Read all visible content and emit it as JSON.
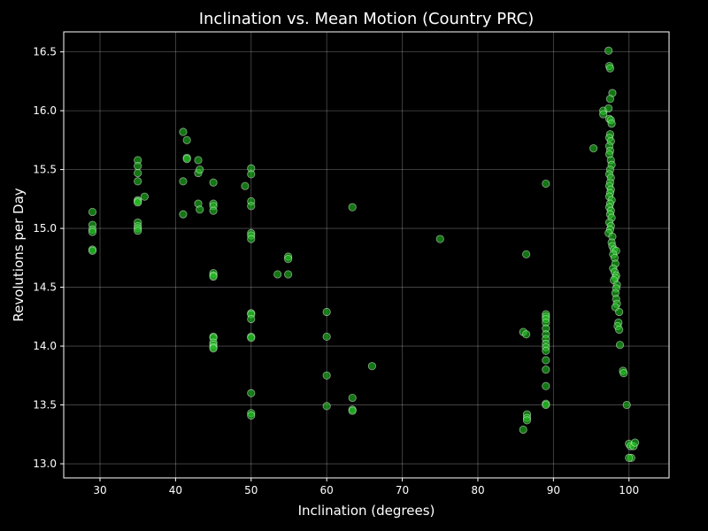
{
  "chart_data": {
    "type": "scatter",
    "title": "Inclination vs. Mean Motion (Country PRC)",
    "xlabel": "Inclination (degrees)",
    "ylabel": "Revolutions per Day",
    "xlim": [
      25.2,
      105.3
    ],
    "ylim": [
      12.88,
      16.67
    ],
    "xticks": [
      30,
      40,
      50,
      60,
      70,
      80,
      90,
      100
    ],
    "yticks": [
      13.0,
      13.5,
      14.0,
      14.5,
      15.0,
      15.5,
      16.0,
      16.5
    ],
    "ytick_labels": [
      "13.0",
      "13.5",
      "14.0",
      "14.5",
      "15.0",
      "15.5",
      "16.0",
      "16.5"
    ],
    "grid": true,
    "colors": {
      "background": "#000000",
      "marker_fill": "#22c322",
      "marker_edge": "#e8ffe8",
      "text": "#ffffff"
    },
    "points": [
      [
        29.0,
        15.14
      ],
      [
        29.0,
        15.03
      ],
      [
        29.0,
        14.99
      ],
      [
        29.0,
        14.97
      ],
      [
        29.0,
        14.82
      ],
      [
        29.0,
        14.81
      ],
      [
        35.0,
        15.58
      ],
      [
        35.0,
        15.53
      ],
      [
        35.0,
        15.47
      ],
      [
        35.0,
        15.4
      ],
      [
        35.0,
        15.24
      ],
      [
        35.0,
        15.23
      ],
      [
        35.0,
        15.22
      ],
      [
        35.0,
        15.05
      ],
      [
        35.0,
        15.02
      ],
      [
        35.0,
        15.0
      ],
      [
        35.0,
        14.98
      ],
      [
        35.9,
        15.27
      ],
      [
        41.0,
        15.82
      ],
      [
        41.5,
        15.75
      ],
      [
        41.5,
        15.6
      ],
      [
        41.5,
        15.59
      ],
      [
        41.0,
        15.4
      ],
      [
        41.0,
        15.12
      ],
      [
        43.0,
        15.58
      ],
      [
        43.0,
        15.47
      ],
      [
        43.2,
        15.5
      ],
      [
        43.0,
        15.21
      ],
      [
        43.2,
        15.16
      ],
      [
        45.0,
        15.39
      ],
      [
        45.0,
        15.21
      ],
      [
        45.0,
        15.19
      ],
      [
        45.0,
        15.15
      ],
      [
        45.0,
        14.62
      ],
      [
        45.0,
        14.6
      ],
      [
        45.0,
        14.59
      ],
      [
        45.0,
        14.08
      ],
      [
        45.0,
        14.07
      ],
      [
        45.0,
        14.03
      ],
      [
        45.0,
        14.01
      ],
      [
        45.0,
        13.99
      ],
      [
        45.0,
        13.98
      ],
      [
        49.2,
        15.36
      ],
      [
        50.0,
        15.51
      ],
      [
        50.0,
        15.46
      ],
      [
        50.0,
        15.23
      ],
      [
        50.0,
        15.19
      ],
      [
        50.0,
        14.96
      ],
      [
        50.0,
        14.94
      ],
      [
        50.0,
        14.91
      ],
      [
        50.0,
        14.28
      ],
      [
        50.0,
        14.27
      ],
      [
        50.0,
        14.23
      ],
      [
        50.0,
        14.08
      ],
      [
        50.0,
        14.07
      ],
      [
        50.0,
        13.6
      ],
      [
        50.0,
        13.43
      ],
      [
        50.0,
        13.41
      ],
      [
        53.5,
        14.61
      ],
      [
        54.9,
        14.76
      ],
      [
        54.9,
        14.74
      ],
      [
        54.9,
        14.61
      ],
      [
        60.0,
        14.29
      ],
      [
        60.0,
        14.08
      ],
      [
        60.0,
        13.75
      ],
      [
        60.0,
        13.49
      ],
      [
        63.4,
        15.18
      ],
      [
        63.4,
        13.56
      ],
      [
        63.4,
        13.46
      ],
      [
        63.4,
        13.45
      ],
      [
        66.0,
        13.83
      ],
      [
        75.0,
        14.91
      ],
      [
        86.0,
        14.12
      ],
      [
        86.0,
        13.29
      ],
      [
        86.4,
        14.78
      ],
      [
        86.4,
        14.1
      ],
      [
        86.5,
        13.42
      ],
      [
        86.5,
        13.39
      ],
      [
        86.5,
        13.37
      ],
      [
        89.0,
        15.38
      ],
      [
        89.0,
        14.27
      ],
      [
        89.0,
        14.25
      ],
      [
        89.0,
        14.23
      ],
      [
        89.0,
        14.2
      ],
      [
        89.0,
        14.15
      ],
      [
        89.0,
        14.1
      ],
      [
        89.0,
        14.06
      ],
      [
        89.0,
        14.02
      ],
      [
        89.0,
        13.99
      ],
      [
        89.0,
        13.96
      ],
      [
        89.0,
        13.88
      ],
      [
        89.0,
        13.8
      ],
      [
        89.0,
        13.66
      ],
      [
        89.0,
        13.51
      ],
      [
        89.0,
        13.5
      ],
      [
        95.3,
        15.68
      ],
      [
        96.6,
        16.0
      ],
      [
        96.6,
        15.97
      ],
      [
        97.3,
        16.51
      ],
      [
        97.4,
        16.38
      ],
      [
        97.5,
        16.36
      ],
      [
        97.8,
        16.15
      ],
      [
        97.5,
        16.1
      ],
      [
        97.3,
        16.02
      ],
      [
        97.4,
        15.93
      ],
      [
        97.6,
        15.92
      ],
      [
        97.7,
        15.89
      ],
      [
        97.5,
        15.8
      ],
      [
        97.4,
        15.77
      ],
      [
        97.6,
        15.74
      ],
      [
        97.4,
        15.7
      ],
      [
        97.5,
        15.66
      ],
      [
        97.4,
        15.63
      ],
      [
        97.6,
        15.58
      ],
      [
        97.7,
        15.54
      ],
      [
        97.5,
        15.5
      ],
      [
        97.4,
        15.46
      ],
      [
        97.6,
        15.43
      ],
      [
        97.5,
        15.39
      ],
      [
        97.4,
        15.36
      ],
      [
        97.6,
        15.33
      ],
      [
        97.5,
        15.3
      ],
      [
        97.4,
        15.27
      ],
      [
        97.7,
        15.24
      ],
      [
        97.5,
        15.21
      ],
      [
        97.4,
        15.18
      ],
      [
        97.6,
        15.15
      ],
      [
        97.5,
        15.12
      ],
      [
        97.7,
        15.09
      ],
      [
        97.4,
        15.05
      ],
      [
        97.6,
        15.02
      ],
      [
        97.5,
        14.99
      ],
      [
        97.3,
        14.96
      ],
      [
        97.8,
        14.93
      ],
      [
        97.7,
        14.88
      ],
      [
        97.8,
        14.85
      ],
      [
        98.0,
        14.82
      ],
      [
        98.3,
        14.81
      ],
      [
        97.9,
        14.78
      ],
      [
        98.1,
        14.75
      ],
      [
        98.2,
        14.7
      ],
      [
        97.9,
        14.66
      ],
      [
        98.1,
        14.63
      ],
      [
        98.3,
        14.6
      ],
      [
        98.2,
        14.58
      ],
      [
        98.0,
        14.56
      ],
      [
        98.4,
        14.52
      ],
      [
        98.3,
        14.49
      ],
      [
        98.2,
        14.45
      ],
      [
        98.3,
        14.4
      ],
      [
        98.4,
        14.36
      ],
      [
        98.2,
        14.33
      ],
      [
        98.7,
        14.29
      ],
      [
        98.6,
        14.2
      ],
      [
        98.5,
        14.17
      ],
      [
        98.7,
        14.14
      ],
      [
        98.8,
        14.01
      ],
      [
        99.2,
        13.79
      ],
      [
        99.3,
        13.77
      ],
      [
        99.7,
        13.5
      ],
      [
        100.0,
        13.17
      ],
      [
        100.2,
        13.15
      ],
      [
        100.6,
        13.15
      ],
      [
        100.8,
        13.18
      ],
      [
        100.3,
        13.05
      ],
      [
        100.0,
        13.05
      ]
    ]
  }
}
